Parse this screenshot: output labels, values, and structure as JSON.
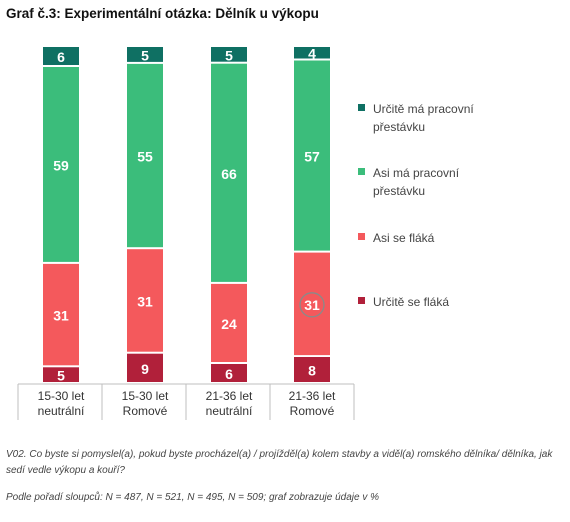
{
  "title": "Graf č.3: Experimentální otázka: Dělník u výkopu",
  "legend": [
    {
      "label": "Určitě má pracovní přestávku",
      "color": "#0f7063"
    },
    {
      "label": "Asi má pracovní přestávku",
      "color": "#3bbd7b"
    },
    {
      "label": "Asi se fláká",
      "color": "#f4595c"
    },
    {
      "label": "Určitě se fláká",
      "color": "#b1203a"
    }
  ],
  "footnote_question": "V02. Co byste si pomyslel(a), pokud byste procházel(a) / projížděl(a) kolem stavby a viděl(a) romského dělníka/ dělníka, jak sedí vedle výkopu a kouří?",
  "footnote_n": "Podle pořadí sloupců: N = 487, N = 521, N = 495, N = 509; graf zobrazuje údaje v %",
  "chart_data": {
    "type": "bar",
    "stacked": true,
    "orientation": "vertical",
    "categories": [
      [
        "15-30 let",
        "neutrální"
      ],
      [
        "15-30 let",
        "Romové"
      ],
      [
        "21-36 let",
        "neutrální"
      ],
      [
        "21-36 let",
        "Romové"
      ]
    ],
    "series": [
      {
        "name": "Určitě se fláká",
        "color": "#b1203a",
        "values": [
          5,
          9,
          6,
          8
        ]
      },
      {
        "name": "Asi se fláká",
        "color": "#f4595c",
        "values": [
          31,
          31,
          24,
          31
        ]
      },
      {
        "name": "Asi má pracovní přestávku",
        "color": "#3bbd7b",
        "values": [
          59,
          55,
          66,
          57
        ]
      },
      {
        "name": "Určitě má pracovní přestávku",
        "color": "#0f7063",
        "values": [
          6,
          5,
          5,
          4
        ]
      }
    ],
    "ylim": [
      0,
      100
    ],
    "grid": false,
    "legend_position": "right"
  }
}
